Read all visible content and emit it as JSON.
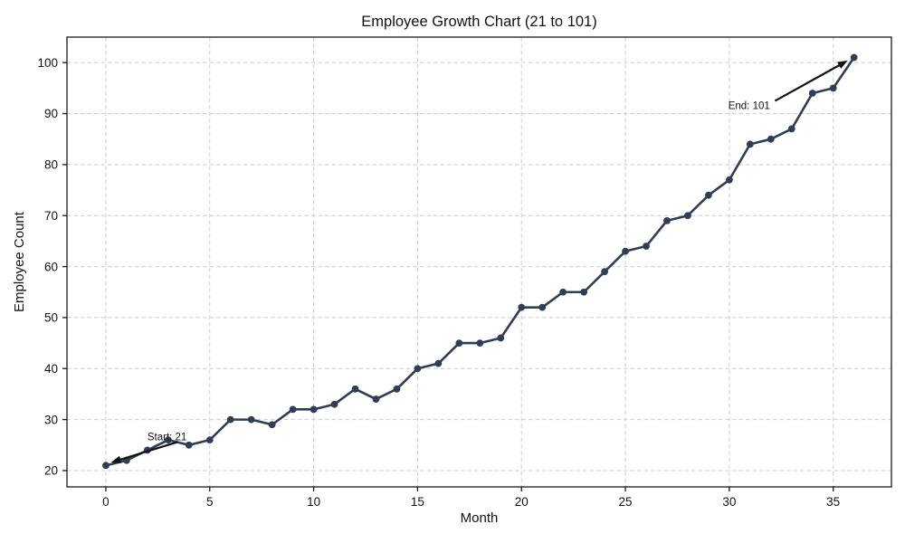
{
  "chart_data": {
    "type": "line",
    "title": "Employee Growth Chart (21 to 101)",
    "xlabel": "Month",
    "ylabel": "Employee Count",
    "x": [
      0,
      1,
      2,
      3,
      4,
      5,
      6,
      7,
      8,
      9,
      10,
      11,
      12,
      13,
      14,
      15,
      16,
      17,
      18,
      19,
      20,
      21,
      22,
      23,
      24,
      25,
      26,
      27,
      28,
      29,
      30,
      31,
      32,
      33,
      34,
      35,
      36
    ],
    "y": [
      21,
      22,
      24,
      26,
      25,
      26,
      30,
      30,
      29,
      32,
      32,
      33,
      36,
      34,
      36,
      40,
      41,
      45,
      45,
      46,
      52,
      52,
      55,
      55,
      59,
      63,
      64,
      69,
      70,
      74,
      77,
      84,
      85,
      87,
      94,
      95,
      101
    ],
    "x_ticks": [
      0,
      5,
      10,
      15,
      20,
      25,
      30,
      35
    ],
    "y_ticks": [
      20,
      30,
      40,
      50,
      60,
      70,
      80,
      90,
      100
    ],
    "xlim": [
      -1.87,
      37.8
    ],
    "ylim": [
      16.8,
      105.0
    ],
    "grid": true,
    "legend": "none",
    "line_color": "#2f3e54",
    "marker_color": "#2f3e54",
    "grid_color": "#cccccc",
    "frame_color": "#1a1a1a",
    "annotations": [
      {
        "label": "Start: 21",
        "text_x": 2.0,
        "text_y": 25.9,
        "arrow_tail_x": 3.45,
        "arrow_tail_y": 25.6,
        "arrow_head_x": 0.25,
        "arrow_head_y": 21.6
      },
      {
        "label": "End: 101",
        "text_x": 29.95,
        "text_y": 90.9,
        "arrow_tail_x": 32.2,
        "arrow_tail_y": 92.5,
        "arrow_head_x": 35.7,
        "arrow_head_y": 100.4
      }
    ]
  }
}
